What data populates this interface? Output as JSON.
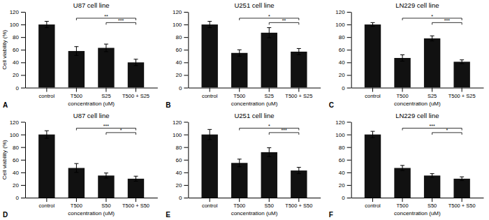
{
  "chart_data": [
    {
      "type": "bar",
      "label": "A",
      "title": "U87 cell line",
      "xlabel": "concentration (uM)",
      "ylabel": "Cell viability (%)",
      "categories": [
        "control",
        "T500",
        "S25",
        "T500 + S25"
      ],
      "values": [
        100,
        58,
        63,
        40
      ],
      "errors": [
        5,
        7,
        6,
        5
      ],
      "color": "#111111",
      "ylim": [
        0,
        120
      ],
      "yticks": [
        0,
        20,
        40,
        60,
        80,
        100,
        120
      ],
      "annotations": [
        {
          "text": "**",
          "x": [
            "T500",
            "T500 + S25"
          ],
          "y": 110
        },
        {
          "text": "***",
          "x": [
            "S25",
            "T500 + S25"
          ],
          "y": 103
        }
      ]
    },
    {
      "type": "bar",
      "label": "B",
      "title": "U251 cell line",
      "xlabel": "concentration (uM)",
      "categories": [
        "control",
        "T500",
        "S25",
        "T500 + S25"
      ],
      "values": [
        100,
        55,
        87,
        57
      ],
      "errors": [
        5,
        5,
        8,
        5
      ],
      "color": "#111111",
      "ylim": [
        0,
        120
      ],
      "yticks": [
        0,
        20,
        40,
        60,
        80,
        100,
        120
      ],
      "annotations": [
        {
          "text": "*",
          "x": [
            "T500",
            "T500 + S25"
          ],
          "y": 110
        },
        {
          "text": "**",
          "x": [
            "S25",
            "T500 + S25"
          ],
          "y": 103
        }
      ]
    },
    {
      "type": "bar",
      "label": "C",
      "title": "LN229 cell line",
      "xlabel": "concentration (uM)",
      "categories": [
        "control",
        "T500",
        "S25",
        "T500 + S25"
      ],
      "values": [
        100,
        47,
        78,
        41
      ],
      "errors": [
        3,
        5,
        4,
        3
      ],
      "color": "#111111",
      "ylim": [
        0,
        120
      ],
      "yticks": [
        0,
        20,
        40,
        60,
        80,
        100,
        120
      ],
      "annotations": [
        {
          "text": "*",
          "x": [
            "T500",
            "T500 + S25"
          ],
          "y": 110
        },
        {
          "text": "***",
          "x": [
            "S25",
            "T500 + S25"
          ],
          "y": 103
        }
      ]
    },
    {
      "type": "bar",
      "label": "D",
      "title": "U87 cell line",
      "xlabel": "concentration (uM)",
      "ylabel": "Cell viability (%)",
      "categories": [
        "control",
        "T500",
        "S50",
        "T500 + S50"
      ],
      "values": [
        100,
        47,
        35,
        30
      ],
      "errors": [
        6,
        7,
        4,
        4
      ],
      "color": "#111111",
      "ylim": [
        0,
        120
      ],
      "yticks": [
        0,
        20,
        40,
        60,
        80,
        100,
        120
      ],
      "annotations": [
        {
          "text": "***",
          "x": [
            "T500",
            "T500 + S50"
          ],
          "y": 110
        },
        {
          "text": "*",
          "x": [
            "S50",
            "T500 + S50"
          ],
          "y": 103
        }
      ]
    },
    {
      "type": "bar",
      "label": "E",
      "title": "U251 cell line",
      "xlabel": "concentration (uM)",
      "categories": [
        "control",
        "T500",
        "S50",
        "T500 + S50"
      ],
      "values": [
        100,
        55,
        72,
        43
      ],
      "errors": [
        8,
        6,
        7,
        5
      ],
      "color": "#111111",
      "ylim": [
        0,
        120
      ],
      "yticks": [
        0,
        20,
        40,
        60,
        80,
        100,
        120
      ],
      "annotations": [
        {
          "text": "*",
          "x": [
            "T500",
            "T500 + S50"
          ],
          "y": 110
        },
        {
          "text": "***",
          "x": [
            "S50",
            "T500 + S50"
          ],
          "y": 103
        }
      ]
    },
    {
      "type": "bar",
      "label": "F",
      "title": "LN229 cell line",
      "xlabel": "concentration (uM)",
      "categories": [
        "control",
        "T500",
        "S50",
        "T500 + S50"
      ],
      "values": [
        100,
        47,
        35,
        30
      ],
      "errors": [
        5,
        4,
        3,
        3
      ],
      "color": "#111111",
      "ylim": [
        0,
        120
      ],
      "yticks": [
        0,
        20,
        40,
        60,
        80,
        100,
        120
      ],
      "annotations": [
        {
          "text": "***",
          "x": [
            "T500",
            "T500 + S50"
          ],
          "y": 110
        },
        {
          "text": "*",
          "x": [
            "S50",
            "T500 + S50"
          ],
          "y": 103
        }
      ]
    }
  ]
}
